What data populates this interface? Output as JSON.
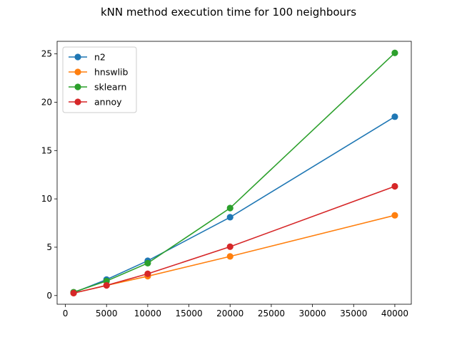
{
  "chart_data": {
    "type": "line",
    "title": "kNN method execution time for 100 neighbours",
    "xlabel": "",
    "ylabel": "",
    "xlim": [
      -1000,
      42000
    ],
    "ylim": [
      -0.9,
      26.3
    ],
    "xticks": [
      0,
      5000,
      10000,
      15000,
      20000,
      25000,
      30000,
      35000,
      40000
    ],
    "yticks": [
      0,
      5,
      10,
      15,
      20,
      25
    ],
    "grid": false,
    "legend_position": "top-left",
    "x": [
      1000,
      5000,
      10000,
      20000,
      40000
    ],
    "series": [
      {
        "name": "n2",
        "color": "#1f77b4",
        "values": [
          0.3,
          1.65,
          3.6,
          8.1,
          18.5
        ]
      },
      {
        "name": "hnswlib",
        "color": "#ff7f0e",
        "values": [
          0.25,
          1.05,
          2.0,
          4.05,
          8.3
        ]
      },
      {
        "name": "sklearn",
        "color": "#2ca02c",
        "values": [
          0.35,
          1.5,
          3.35,
          9.05,
          25.1
        ]
      },
      {
        "name": "annoy",
        "color": "#d62728",
        "values": [
          0.25,
          1.05,
          2.25,
          5.05,
          11.3
        ]
      }
    ]
  }
}
